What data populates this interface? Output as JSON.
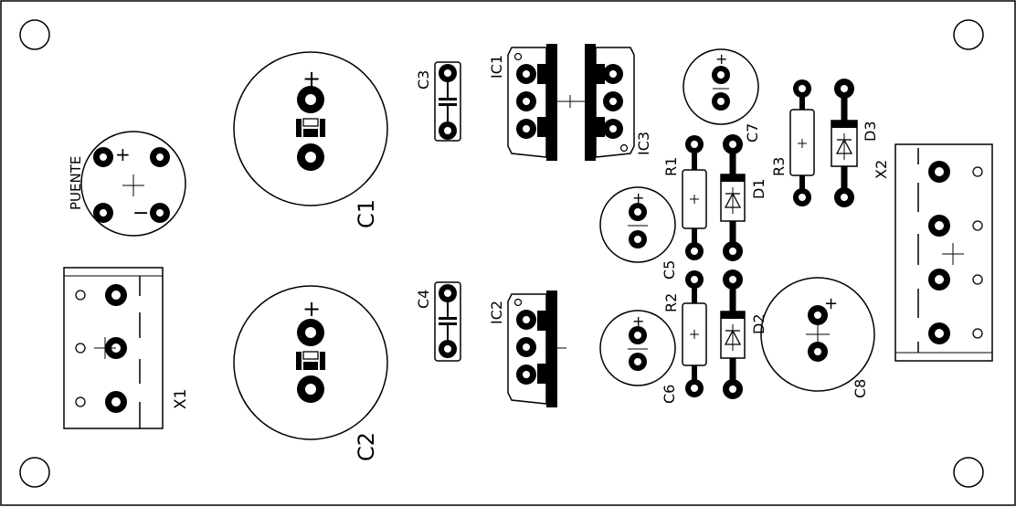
{
  "board": {
    "stroke": "#000000",
    "background": "#ffffff"
  },
  "labels": {
    "puente": "PUENTE",
    "c1": "C1",
    "c2": "C2",
    "c3": "C3",
    "c4": "C4",
    "c5": "C5",
    "c6": "C6",
    "c7": "C7",
    "c8": "C8",
    "ic1": "IC1",
    "ic2": "IC2",
    "ic3": "IC3",
    "r1": "R1",
    "r2": "R2",
    "r3": "R3",
    "d1": "D1",
    "d2": "D2",
    "d3": "D3",
    "x1": "X1",
    "x2": "X2",
    "plus": "+",
    "minus": "−"
  }
}
